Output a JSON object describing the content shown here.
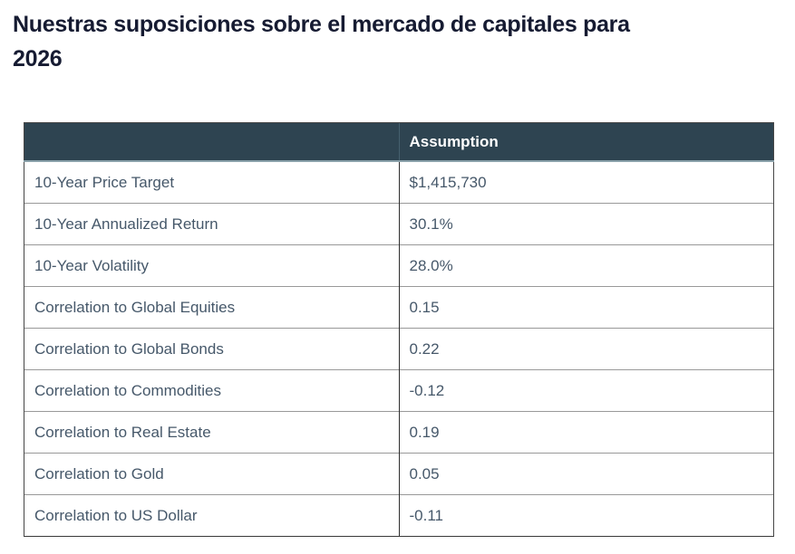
{
  "page": {
    "title_lines": [
      "Nuestras suposiciones sobre el mercado de capitales para",
      "2026"
    ]
  },
  "colors": {
    "title_text": "#161b32",
    "header_bg": "#2e4451",
    "header_text": "#ffffff",
    "cell_text": "#46586a",
    "header_bottom_edge": "#8ba2ab"
  },
  "chart_data": {
    "type": "table",
    "title": "Nuestras suposiciones sobre el mercado de capitales para 2026",
    "columns": [
      "",
      "Assumption"
    ],
    "rows": [
      [
        "10-Year Price Target",
        "$1,415,730"
      ],
      [
        "10-Year Annualized Return",
        "30.1%"
      ],
      [
        "10-Year Volatility",
        "28.0%"
      ],
      [
        "Correlation to Global Equities",
        "0.15"
      ],
      [
        "Correlation to Global Bonds",
        "0.22"
      ],
      [
        "Correlation to Commodities",
        "-0.12"
      ],
      [
        "Correlation to Real Estate",
        "0.19"
      ],
      [
        "Correlation to Gold",
        "0.05"
      ],
      [
        "Correlation to US Dollar",
        "-0.11"
      ]
    ]
  }
}
